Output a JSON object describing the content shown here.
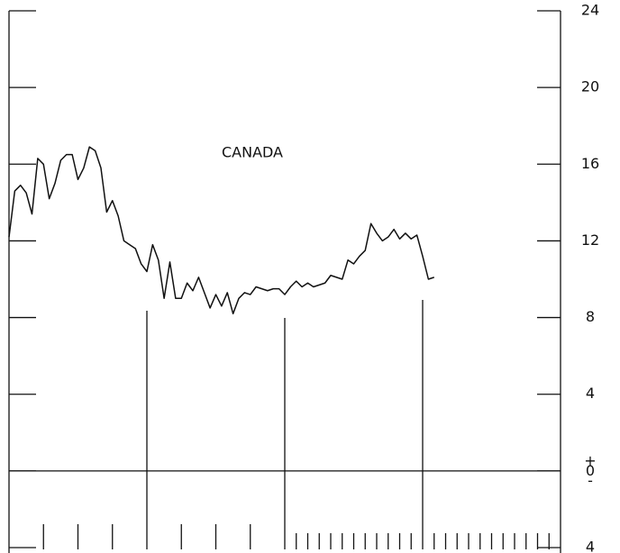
{
  "chart_data": {
    "type": "line",
    "title": "CANADA",
    "xlim": [
      0,
      96
    ],
    "xticks": [
      6,
      12,
      18,
      30,
      36,
      42,
      50,
      52,
      54,
      56,
      58,
      60,
      62,
      64,
      66,
      68,
      70,
      74,
      76,
      78,
      80,
      82,
      84,
      86,
      88,
      90,
      92,
      94
    ],
    "year_lines": [
      24,
      48,
      72
    ],
    "ylim": [
      -4,
      24
    ],
    "yticks": [
      24,
      20,
      16,
      12,
      8,
      4,
      {
        "value": 0,
        "label": "+0-"
      },
      {
        "value": -4,
        "label": "4"
      }
    ],
    "reference_line": 0,
    "series": [
      {
        "name": "CANADA",
        "color": "#111111",
        "x": [
          0,
          1,
          2,
          3,
          4,
          5,
          6,
          7,
          8,
          9,
          10,
          11,
          12,
          13,
          14,
          15,
          16,
          17,
          18,
          19,
          20,
          21,
          22,
          23,
          24,
          25,
          26,
          27,
          28,
          29,
          30,
          31,
          32,
          33,
          34,
          35,
          36,
          37,
          38,
          39,
          40,
          41,
          42,
          43,
          44,
          45,
          46,
          47,
          48,
          49,
          50,
          51,
          52,
          53,
          54,
          55,
          56,
          57,
          58,
          59,
          60,
          61,
          62,
          63,
          64,
          65,
          66,
          67,
          68,
          69,
          70,
          71,
          72,
          73,
          74
        ],
        "values": [
          12.2,
          14.6,
          14.9,
          14.5,
          13.4,
          16.3,
          16.0,
          14.2,
          15.0,
          16.2,
          16.5,
          16.5,
          15.2,
          15.8,
          16.9,
          16.7,
          15.8,
          13.5,
          14.1,
          13.3,
          12.0,
          11.8,
          11.6,
          10.8,
          10.4,
          11.8,
          11.0,
          9.0,
          10.9,
          9.0,
          9.0,
          9.8,
          9.4,
          10.1,
          9.3,
          8.5,
          9.2,
          8.6,
          9.3,
          8.2,
          9.0,
          9.3,
          9.2,
          9.6,
          9.5,
          9.4,
          9.5,
          9.5,
          9.2,
          9.6,
          9.9,
          9.6,
          9.8,
          9.6,
          9.7,
          9.8,
          10.2,
          10.1,
          10.0,
          11.0,
          10.8,
          11.2,
          11.5,
          12.9,
          12.4,
          12.0,
          12.2,
          12.6,
          12.1,
          12.4,
          12.1,
          12.3,
          11.2,
          10.0,
          10.1
        ]
      }
    ]
  }
}
